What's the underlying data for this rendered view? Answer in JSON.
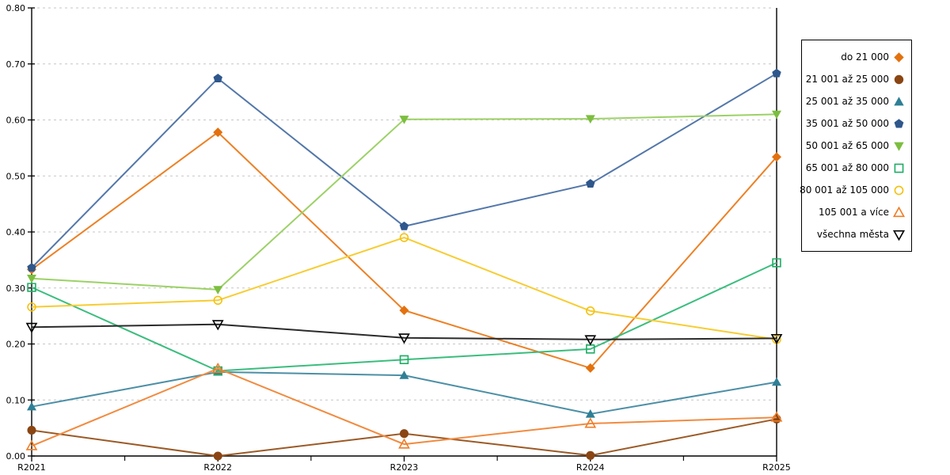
{
  "chart_data": {
    "type": "line",
    "title": "",
    "xlabel": "",
    "ylabel": "",
    "categories": [
      "R2021",
      "R2022",
      "R2023",
      "R2024",
      "R2025"
    ],
    "ylim": [
      0.0,
      0.8
    ],
    "y_ticks": [
      "0.00",
      "0.10",
      "0.20",
      "0.30",
      "0.40",
      "0.50",
      "0.60",
      "0.70",
      "0.80"
    ],
    "grid": "horizontal dashed gridlines at 0.10 steps",
    "legend_position": "right",
    "series": [
      {
        "name": "do 21 000",
        "marker": "diamond",
        "fill": "solid",
        "color": "#E3710E",
        "line_color": "#EC8126",
        "values": [
          0.333,
          0.578,
          0.26,
          0.157,
          0.534
        ]
      },
      {
        "name": "21 001 až 25 000",
        "marker": "circle",
        "fill": "solid",
        "color": "#8A4513",
        "line_color": "#9B5A26",
        "values": [
          0.046,
          0.0,
          0.04,
          0.001,
          0.066
        ]
      },
      {
        "name": "25 001 až 35 000",
        "marker": "triangle-up",
        "fill": "solid",
        "color": "#2E7F96",
        "line_color": "#4C8FA6",
        "values": [
          0.088,
          0.15,
          0.144,
          0.075,
          0.132
        ]
      },
      {
        "name": "35 001 až 50 000",
        "marker": "pentagon",
        "fill": "solid",
        "color": "#2F578C",
        "line_color": "#5377A9",
        "values": [
          0.336,
          0.674,
          0.41,
          0.486,
          0.683
        ]
      },
      {
        "name": "50 001 až 65 000",
        "marker": "triangle-down",
        "fill": "solid",
        "color": "#7CBE3F",
        "line_color": "#9CD166",
        "values": [
          0.317,
          0.297,
          0.601,
          0.602,
          0.61
        ]
      },
      {
        "name": "65 001 až 80 000",
        "marker": "square",
        "fill": "hollow",
        "color": "#1EAD65",
        "line_color": "#3BBD7E",
        "values": [
          0.301,
          0.152,
          0.172,
          0.191,
          0.345
        ]
      },
      {
        "name": "80 001 až 105 000",
        "marker": "circle",
        "fill": "hollow",
        "color": "#F3C110",
        "line_color": "#F7CC32",
        "values": [
          0.266,
          0.278,
          0.39,
          0.259,
          0.208
        ]
      },
      {
        "name": "105 001 a více",
        "marker": "triangle-up",
        "fill": "hollow",
        "color": "#EE7D28",
        "line_color": "#F18B40",
        "values": [
          0.018,
          0.156,
          0.021,
          0.058,
          0.069
        ]
      },
      {
        "name": "všechna města",
        "marker": "triangle-down",
        "fill": "hollow",
        "color": "#000000",
        "line_color": "#2B2B2B",
        "values": [
          0.23,
          0.235,
          0.211,
          0.208,
          0.21
        ]
      }
    ]
  },
  "colors": {
    "background": "#FFFFFF",
    "axis": "#000000",
    "gridline": "#C6C6C6"
  }
}
